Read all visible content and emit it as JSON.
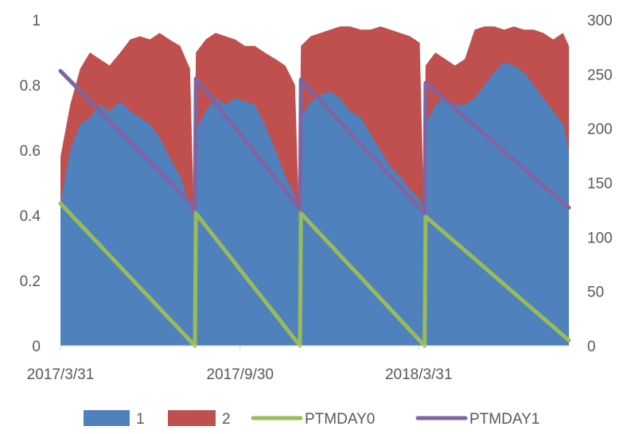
{
  "chart_data": {
    "type": "area",
    "x_tick_labels": [
      "2017/3/31",
      "2017/9/30",
      "2018/3/31"
    ],
    "x_tick_dates": [
      "2017-03-31",
      "2017-09-30",
      "2018-03-31"
    ],
    "x_range": [
      "2017-03-31",
      "2018-08-31"
    ],
    "y_left": {
      "range": [
        0,
        1
      ],
      "ticks": [
        "0",
        "0.2",
        "0.4",
        "0.6",
        "0.8",
        "1"
      ]
    },
    "y_right": {
      "range": [
        0,
        300
      ],
      "ticks": [
        "0",
        "50",
        "100",
        "150",
        "200",
        "250",
        "300"
      ]
    },
    "grid": false,
    "legend_position": "bottom",
    "stacked_area_series": [
      {
        "name": "1",
        "color": "#4f81bd",
        "axis": "left",
        "points": [
          [
            "2017-03-31",
            0.44
          ],
          [
            "2017-04-10",
            0.6
          ],
          [
            "2017-04-20",
            0.68
          ],
          [
            "2017-04-30",
            0.7
          ],
          [
            "2017-05-10",
            0.74
          ],
          [
            "2017-05-20",
            0.72
          ],
          [
            "2017-05-31",
            0.75
          ],
          [
            "2017-06-10",
            0.72
          ],
          [
            "2017-06-20",
            0.7
          ],
          [
            "2017-06-30",
            0.68
          ],
          [
            "2017-07-10",
            0.64
          ],
          [
            "2017-07-20",
            0.58
          ],
          [
            "2017-07-31",
            0.52
          ],
          [
            "2017-08-10",
            0.43
          ],
          [
            "2017-08-14",
            0.4
          ],
          [
            "2017-08-16",
            0.66
          ],
          [
            "2017-08-26",
            0.72
          ],
          [
            "2017-09-05",
            0.76
          ],
          [
            "2017-09-15",
            0.74
          ],
          [
            "2017-09-25",
            0.76
          ],
          [
            "2017-10-05",
            0.75
          ],
          [
            "2017-10-15",
            0.74
          ],
          [
            "2017-10-25",
            0.68
          ],
          [
            "2017-11-05",
            0.6
          ],
          [
            "2017-11-15",
            0.52
          ],
          [
            "2017-11-25",
            0.46
          ],
          [
            "2017-11-29",
            0.4
          ],
          [
            "2017-12-01",
            0.7
          ],
          [
            "2017-12-11",
            0.75
          ],
          [
            "2017-12-21",
            0.77
          ],
          [
            "2017-12-31",
            0.78
          ],
          [
            "2018-01-10",
            0.76
          ],
          [
            "2018-01-20",
            0.72
          ],
          [
            "2018-01-31",
            0.7
          ],
          [
            "2018-02-10",
            0.65
          ],
          [
            "2018-02-20",
            0.6
          ],
          [
            "2018-03-02",
            0.55
          ],
          [
            "2018-03-12",
            0.52
          ],
          [
            "2018-03-22",
            0.48
          ],
          [
            "2018-04-01",
            0.45
          ],
          [
            "2018-04-05",
            0.42
          ],
          [
            "2018-04-07",
            0.68
          ],
          [
            "2018-04-17",
            0.74
          ],
          [
            "2018-04-27",
            0.76
          ],
          [
            "2018-05-07",
            0.74
          ],
          [
            "2018-05-17",
            0.74
          ],
          [
            "2018-05-27",
            0.76
          ],
          [
            "2018-06-06",
            0.8
          ],
          [
            "2018-06-16",
            0.84
          ],
          [
            "2018-06-26",
            0.87
          ],
          [
            "2018-07-06",
            0.86
          ],
          [
            "2018-07-16",
            0.84
          ],
          [
            "2018-07-26",
            0.8
          ],
          [
            "2018-08-05",
            0.76
          ],
          [
            "2018-08-15",
            0.72
          ],
          [
            "2018-08-25",
            0.68
          ],
          [
            "2018-08-31",
            0.6
          ]
        ]
      },
      {
        "name": "2",
        "color": "#c0504d",
        "axis": "left",
        "points": [
          [
            "2017-03-31",
            0.58
          ],
          [
            "2017-04-10",
            0.74
          ],
          [
            "2017-04-20",
            0.85
          ],
          [
            "2017-04-30",
            0.9
          ],
          [
            "2017-05-10",
            0.88
          ],
          [
            "2017-05-20",
            0.86
          ],
          [
            "2017-05-31",
            0.9
          ],
          [
            "2017-06-10",
            0.94
          ],
          [
            "2017-06-20",
            0.95
          ],
          [
            "2017-06-30",
            0.94
          ],
          [
            "2017-07-10",
            0.96
          ],
          [
            "2017-07-20",
            0.94
          ],
          [
            "2017-07-31",
            0.92
          ],
          [
            "2017-08-10",
            0.85
          ],
          [
            "2017-08-14",
            0.4
          ],
          [
            "2017-08-16",
            0.9
          ],
          [
            "2017-08-26",
            0.94
          ],
          [
            "2017-09-05",
            0.96
          ],
          [
            "2017-09-15",
            0.95
          ],
          [
            "2017-09-25",
            0.94
          ],
          [
            "2017-10-05",
            0.92
          ],
          [
            "2017-10-15",
            0.92
          ],
          [
            "2017-10-25",
            0.9
          ],
          [
            "2017-11-05",
            0.88
          ],
          [
            "2017-11-15",
            0.86
          ],
          [
            "2017-11-25",
            0.8
          ],
          [
            "2017-11-29",
            0.4
          ],
          [
            "2017-12-01",
            0.92
          ],
          [
            "2017-12-11",
            0.95
          ],
          [
            "2017-12-21",
            0.96
          ],
          [
            "2017-12-31",
            0.97
          ],
          [
            "2018-01-10",
            0.98
          ],
          [
            "2018-01-20",
            0.98
          ],
          [
            "2018-01-31",
            0.97
          ],
          [
            "2018-02-10",
            0.97
          ],
          [
            "2018-02-20",
            0.98
          ],
          [
            "2018-03-02",
            0.97
          ],
          [
            "2018-03-12",
            0.96
          ],
          [
            "2018-03-22",
            0.95
          ],
          [
            "2018-04-01",
            0.93
          ],
          [
            "2018-04-05",
            0.45
          ],
          [
            "2018-04-07",
            0.86
          ],
          [
            "2018-04-17",
            0.9
          ],
          [
            "2018-04-27",
            0.88
          ],
          [
            "2018-05-07",
            0.86
          ],
          [
            "2018-05-17",
            0.88
          ],
          [
            "2018-05-27",
            0.97
          ],
          [
            "2018-06-06",
            0.98
          ],
          [
            "2018-06-16",
            0.98
          ],
          [
            "2018-06-26",
            0.97
          ],
          [
            "2018-07-06",
            0.98
          ],
          [
            "2018-07-16",
            0.97
          ],
          [
            "2018-07-26",
            0.97
          ],
          [
            "2018-08-05",
            0.96
          ],
          [
            "2018-08-15",
            0.94
          ],
          [
            "2018-08-25",
            0.96
          ],
          [
            "2018-08-31",
            0.92
          ]
        ]
      }
    ],
    "line_series": [
      {
        "name": "PTMDAY0",
        "color": "#9bbb59",
        "axis": "right",
        "points": [
          [
            "2017-03-31",
            131
          ],
          [
            "2017-08-15",
            0
          ],
          [
            "2017-08-16",
            122
          ],
          [
            "2017-11-30",
            0
          ],
          [
            "2017-12-01",
            122
          ],
          [
            "2018-04-06",
            0
          ],
          [
            "2018-04-07",
            119
          ],
          [
            "2018-08-31",
            5
          ]
        ]
      },
      {
        "name": "PTMDAY1",
        "color": "#8064a2",
        "axis": "right",
        "points": [
          [
            "2017-03-31",
            253
          ],
          [
            "2017-08-15",
            127
          ],
          [
            "2017-08-16",
            246
          ],
          [
            "2017-11-30",
            126
          ],
          [
            "2017-12-01",
            245
          ],
          [
            "2018-04-06",
            122
          ],
          [
            "2018-04-07",
            242
          ],
          [
            "2018-08-31",
            127
          ]
        ]
      }
    ]
  }
}
